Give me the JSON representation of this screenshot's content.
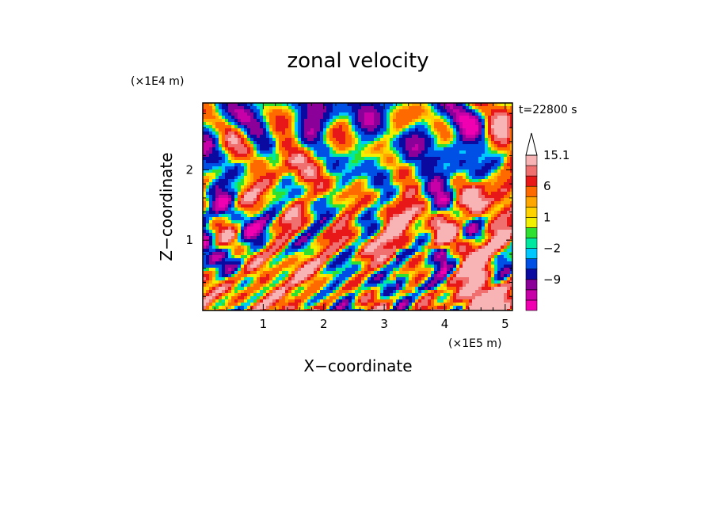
{
  "chart_data": {
    "type": "heatmap",
    "title": "zonal velocity",
    "xlabel": "X−coordinate",
    "ylabel": "Z−coordinate",
    "x_scale_note": "(×1E5 m)",
    "y_scale_note": "(×1E4 m)",
    "time_label": "t=22800 s",
    "xlim": [
      0,
      5.12
    ],
    "ylim": [
      0,
      2.95
    ],
    "x_ticks": [
      1,
      2,
      3,
      4,
      5
    ],
    "x_tick_labels": [
      "1",
      "2",
      "3",
      "4",
      "5"
    ],
    "y_ticks": [
      1,
      2
    ],
    "y_tick_labels": [
      "1",
      "2"
    ],
    "colorbar": {
      "levels": [
        -15,
        -12,
        -9,
        -6,
        -3,
        -2,
        -1,
        0,
        1,
        2,
        3,
        6,
        9,
        12,
        15.1
      ],
      "labels": [
        {
          "value": 15.1,
          "text": "15.1"
        },
        {
          "value": 6,
          "text": "6"
        },
        {
          "value": 1,
          "text": "1"
        },
        {
          "value": -2,
          "text": "−2"
        },
        {
          "value": -9,
          "text": "−9"
        }
      ],
      "colors": [
        "#f000b0",
        "#c800a8",
        "#8a0098",
        "#0a0aa0",
        "#0050e6",
        "#00c8ff",
        "#00e8a0",
        "#30e030",
        "#f0f000",
        "#ffd200",
        "#ffa600",
        "#ff6a00",
        "#e81818",
        "#f07070",
        "#f8b4b4"
      ],
      "extend": "max"
    }
  }
}
